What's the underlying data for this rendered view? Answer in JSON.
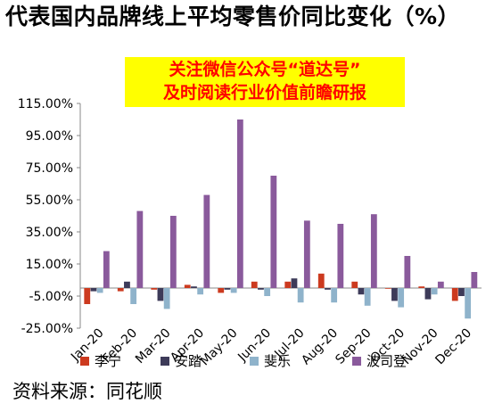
{
  "title": "代表国内品牌线上平均零售价同比变化（%）",
  "banner": {
    "line1": "关注微信公众号“道达号”",
    "line2": "及时阅读行业价值前瞻研报"
  },
  "source": "资料来源：同花顺",
  "colors": {
    "series": [
      "#cc3a1f",
      "#3d3b59",
      "#8fb3cb",
      "#8a5a9c"
    ],
    "banner_bg": "#ffff00",
    "banner_text": "#ff0000"
  },
  "chart_data": {
    "type": "bar",
    "title": "代表国内品牌线上平均零售价同比变化（%）",
    "xlabel": "",
    "ylabel": "",
    "ylim": [
      -25,
      115
    ],
    "yticks": [
      -25,
      -5,
      15,
      35,
      55,
      75,
      95,
      115
    ],
    "ytick_labels": [
      "-25.00%",
      "-5.00%",
      "15.00%",
      "35.00%",
      "55.00%",
      "75.00%",
      "95.00%",
      "115.00%"
    ],
    "categories": [
      "Jan-20",
      "Feb-20",
      "Mar-20",
      "Apr-20",
      "May-20",
      "Jun-20",
      "Jul-20",
      "Aug-20",
      "Sep-20",
      "Oct-20",
      "Nov-20",
      "Dec-20"
    ],
    "series": [
      {
        "name": "李宁",
        "values": [
          -10,
          -2,
          -1,
          2,
          -3,
          4,
          4,
          9,
          4,
          0,
          1,
          -8
        ]
      },
      {
        "name": "安踏",
        "values": [
          -2,
          4,
          -8,
          1,
          -1,
          -1,
          6,
          -1,
          -4,
          -8,
          -7,
          -5
        ]
      },
      {
        "name": "斐乐",
        "values": [
          -3,
          -10,
          -13,
          -4,
          -3,
          -5,
          -9,
          -9,
          -11,
          -12,
          -4,
          -19
        ]
      },
      {
        "name": "波司登",
        "values": [
          23,
          48,
          45,
          58,
          105,
          70,
          42,
          40,
          46,
          20,
          4,
          10
        ]
      }
    ],
    "grid": false,
    "legend": "bottom"
  }
}
